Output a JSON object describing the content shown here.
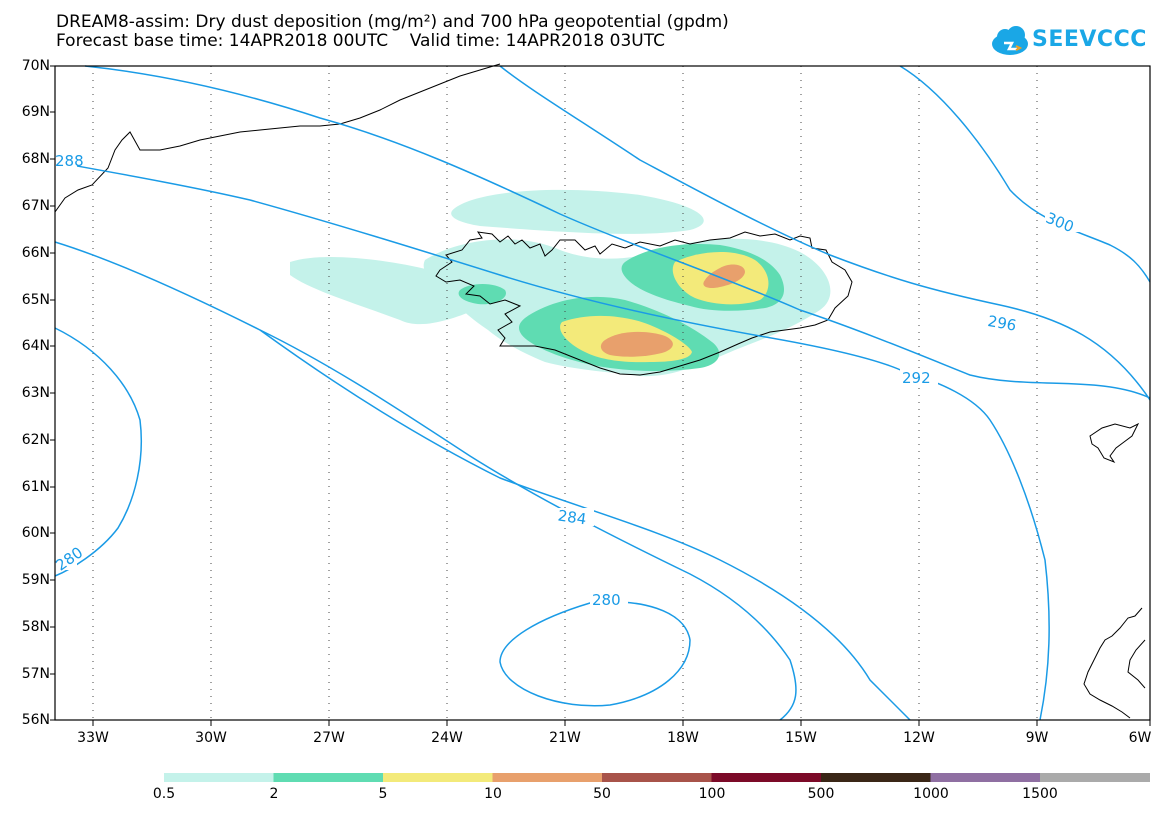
{
  "title_line1": "DREAM8-assim: Dry dust deposition (mg/m²) and 700 hPa geopotential (gpdm)",
  "title_line2": "Forecast base time: 14APR2018 00UTC    Valid time: 14APR2018 03UTC",
  "logo_text": "SEEVCCC",
  "lat_labels": [
    "70N",
    "69N",
    "68N",
    "67N",
    "66N",
    "65N",
    "64N",
    "63N",
    "62N",
    "61N",
    "60N",
    "59N",
    "58N",
    "57N",
    "56N"
  ],
  "lon_labels": [
    "33W",
    "30W",
    "27W",
    "24W",
    "21W",
    "18W",
    "15W",
    "12W",
    "9W",
    "6W"
  ],
  "contour_labels": [
    "288",
    "300",
    "296",
    "292",
    "284",
    "280",
    "280"
  ],
  "colorbar": {
    "colors": [
      "#c4f2ea",
      "#5fdcb2",
      "#f3ea7a",
      "#e8a06c",
      "#a8534a",
      "#7c0a28",
      "#3a2616",
      "#8f6fa2",
      "#aaaaaa"
    ],
    "labels": [
      "0.5",
      "2",
      "5",
      "10",
      "50",
      "100",
      "500",
      "1000",
      "1500"
    ]
  }
}
